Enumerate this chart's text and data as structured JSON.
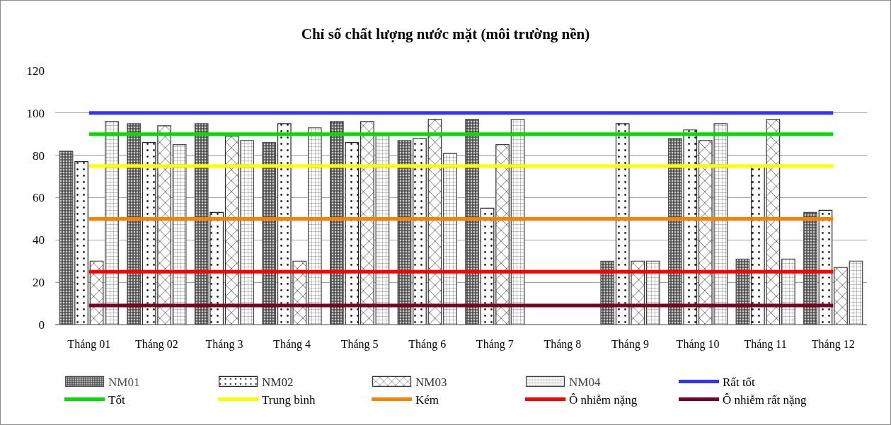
{
  "chart_data": {
    "type": "bar",
    "title": "Chỉ số chất lượng nước mặt (môi trường nền)",
    "categories": [
      "Tháng 01",
      "Tháng 02",
      "Tháng 3",
      "Tháng 4",
      "Tháng 5",
      "Tháng 6",
      "Tháng 7",
      "Tháng 8",
      "Tháng 9",
      "Tháng 10",
      "Tháng 11",
      "Tháng 12"
    ],
    "series": [
      {
        "name": "NM01",
        "color": "#4d4d4d",
        "values": [
          82,
          95,
          95,
          86,
          96,
          87,
          97,
          null,
          30,
          88,
          31,
          53
        ]
      },
      {
        "name": "NM02",
        "color": "#262626",
        "values": [
          77,
          86,
          53,
          95,
          86,
          88,
          55,
          null,
          95,
          92,
          75,
          54
        ]
      },
      {
        "name": "NM03",
        "color": "#333333",
        "values": [
          30,
          94,
          89,
          30,
          96,
          97,
          85,
          null,
          30,
          87,
          97,
          27
        ]
      },
      {
        "name": "NM04",
        "color": "#404040",
        "values": [
          96,
          85,
          87,
          93,
          90,
          81,
          97,
          null,
          30,
          95,
          31,
          30
        ]
      },
      {
        "name": "Rất tốt",
        "type": "line",
        "color": "#3333ff",
        "values": [
          100,
          100,
          100,
          100,
          100,
          100,
          100,
          100,
          100,
          100,
          100,
          100
        ]
      },
      {
        "name": "Tốt",
        "type": "line",
        "color": "#00dd00",
        "values": [
          90,
          90,
          90,
          90,
          90,
          90,
          90,
          90,
          90,
          90,
          90,
          90
        ]
      },
      {
        "name": "Trung bình",
        "type": "line",
        "color": "#ffff00",
        "values": [
          75,
          75,
          75,
          75,
          75,
          75,
          75,
          75,
          75,
          75,
          75,
          75
        ]
      },
      {
        "name": "Kém",
        "type": "line",
        "color": "#ff8000",
        "values": [
          50,
          50,
          50,
          50,
          50,
          50,
          50,
          50,
          50,
          50,
          50,
          50
        ]
      },
      {
        "name": "Ô nhiễm nặng",
        "type": "line",
        "color": "#ff0000",
        "values": [
          25,
          25,
          25,
          25,
          25,
          25,
          25,
          25,
          25,
          25,
          25,
          25
        ]
      },
      {
        "name": "Ô nhiễm rất nặng",
        "type": "line",
        "color": "#7a0026",
        "values": [
          9,
          9,
          9,
          9,
          9,
          9,
          9,
          9,
          9,
          9,
          9,
          9
        ]
      }
    ],
    "ylim": [
      0,
      120
    ],
    "yticks": [
      0,
      20,
      40,
      60,
      80,
      100,
      120
    ],
    "grid": "y",
    "legend": "bottom"
  }
}
